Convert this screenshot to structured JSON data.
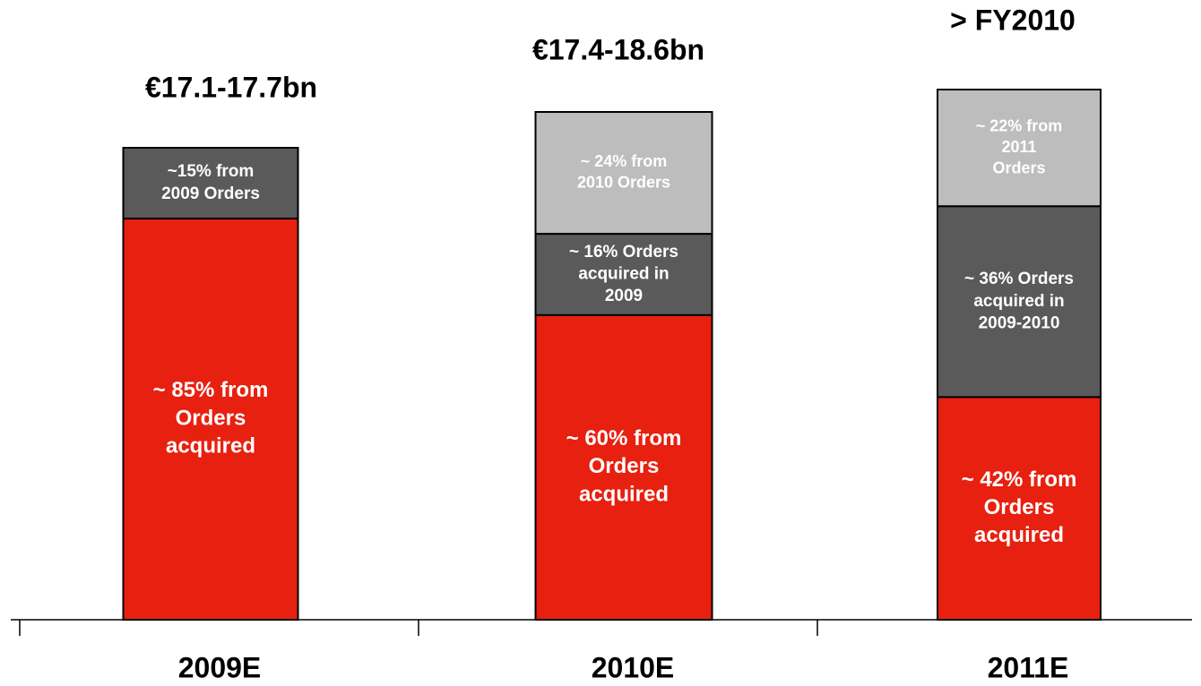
{
  "chart_data": {
    "type": "stacked_bar",
    "categories": [
      "2009E",
      "2010E",
      "2011E"
    ],
    "annotations": [
      "€17.1-17.7bn",
      "€17.4-18.6bn",
      "> FY2010"
    ],
    "series": [
      {
        "color": "#e8200f",
        "values": [
          85,
          60,
          42
        ],
        "value_labels": [
          [
            "~ 85% from",
            "Orders",
            "acquired"
          ],
          [
            "~ 60% from",
            "Orders",
            "acquired"
          ],
          [
            "~ 42% from",
            "Orders",
            "acquired"
          ]
        ]
      },
      {
        "color": "#5a5a5a",
        "values": [
          15,
          16,
          36
        ],
        "value_labels": [
          [
            "~15% from",
            "2009 Orders"
          ],
          [
            "~ 16% Orders",
            "acquired in",
            "2009"
          ],
          [
            "~ 36% Orders",
            "acquired in",
            "2009-2010"
          ]
        ]
      },
      {
        "color": "#bdbdbd",
        "values": [
          null,
          24,
          22
        ],
        "value_labels": [
          null,
          [
            "~ 24% from",
            "2010 Orders"
          ],
          [
            "~ 22% from",
            "2011",
            "Orders"
          ]
        ]
      }
    ]
  }
}
